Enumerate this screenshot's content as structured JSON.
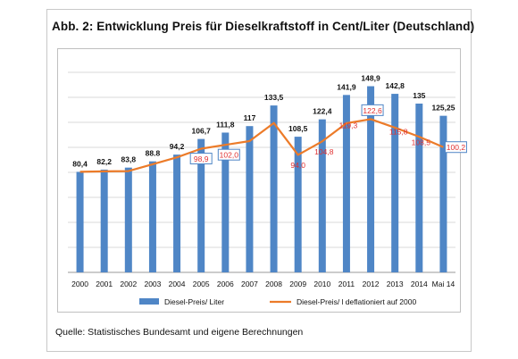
{
  "title": "Abb. 2: Entwicklung Preis für Dieselkraftstoff in Cent/Liter (Deutschland)",
  "source": "Quelle: Statistisches Bundesamt und eigene Berechnungen",
  "colors": {
    "bar": "#4f86c6",
    "line": "#ec7b29",
    "line_label": "#e03030",
    "boxed_label": "#4f86c6"
  },
  "chart_data": {
    "type": "bar",
    "categories": [
      "2000",
      "2001",
      "2002",
      "2003",
      "2004",
      "2005",
      "2006",
      "2007",
      "2008",
      "2009",
      "2010",
      "2011",
      "2012",
      "2013",
      "2014",
      "Mai 14"
    ],
    "ylim": [
      0,
      160
    ],
    "grid": true,
    "legend_position": "bottom",
    "series": [
      {
        "name": "Diesel-Preis/ Liter",
        "type": "bar",
        "values": [
          80.4,
          82.2,
          83.8,
          88.8,
          94.2,
          106.7,
          111.8,
          117,
          133.5,
          108.5,
          122.4,
          141.9,
          148.9,
          142.8,
          135,
          125.25
        ],
        "labels": [
          "80,4",
          "82,2",
          "83,8",
          "88.8",
          "94,2",
          "106,7",
          "111,8",
          "117",
          "133,5",
          "108,5",
          "122,4",
          "141,9",
          "148,9",
          "142,8",
          "135",
          "125,25"
        ]
      },
      {
        "name": "Diesel-Preis/ l deflationiert auf 2000",
        "type": "line",
        "values": [
          80.4,
          80.8,
          81.0,
          86.5,
          92.0,
          98.9,
          102.0,
          105.0,
          119.5,
          94.0,
          104.8,
          119.3,
          122.6,
          115.8,
          108.5,
          100.2
        ],
        "labels": [
          "",
          "",
          "",
          "",
          "",
          "98,9",
          "102,0",
          "",
          "",
          "94,0",
          "104,8",
          "119,3",
          "122,6",
          "115,8",
          "108,5",
          "100,2"
        ],
        "boxed_labels": [
          5,
          6,
          12,
          15
        ]
      }
    ]
  }
}
